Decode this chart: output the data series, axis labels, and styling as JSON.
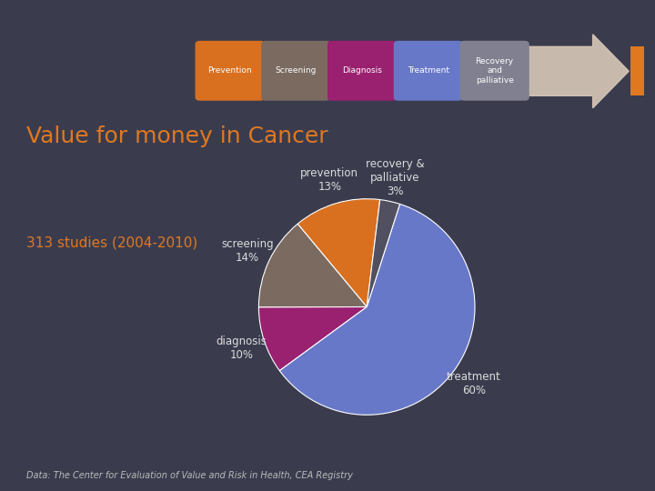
{
  "bg_color": "#3a3c4e",
  "title": "Value for money in Cancer",
  "title_color": "#e07820",
  "title_fontsize": 18,
  "subtitle": "313 studies (2004-2010)",
  "subtitle_color": "#e07820",
  "subtitle_fontsize": 11,
  "footer": "Data: The Center for Evaluation of Value and Risk in Health, CEA Registry",
  "footer_color": "#bbbbbb",
  "footer_fontsize": 7,
  "arrow_color": "#d9c8b8",
  "arrow_tip_color": "#e07820",
  "boxes": [
    {
      "label": "Prevention",
      "color": "#d97020"
    },
    {
      "label": "Screening",
      "color": "#7a6a60"
    },
    {
      "label": "Diagnosis",
      "color": "#9a2070"
    },
    {
      "label": "Treatment",
      "color": "#6878c8"
    },
    {
      "label": "Recovery\nand\npalliative",
      "color": "#808090"
    }
  ],
  "pie_labels": [
    "prevention\n13%",
    "screening\n14%",
    "diagnosis\n10%",
    "treatment\n60%",
    "recovery &\npalliative\n3%"
  ],
  "pie_values": [
    13,
    14,
    10,
    60,
    3
  ],
  "pie_colors": [
    "#d97020",
    "#7a6a60",
    "#9a2070",
    "#6878c8",
    "#505060"
  ],
  "pie_label_color": "#dddddd",
  "pie_startangle": 83
}
